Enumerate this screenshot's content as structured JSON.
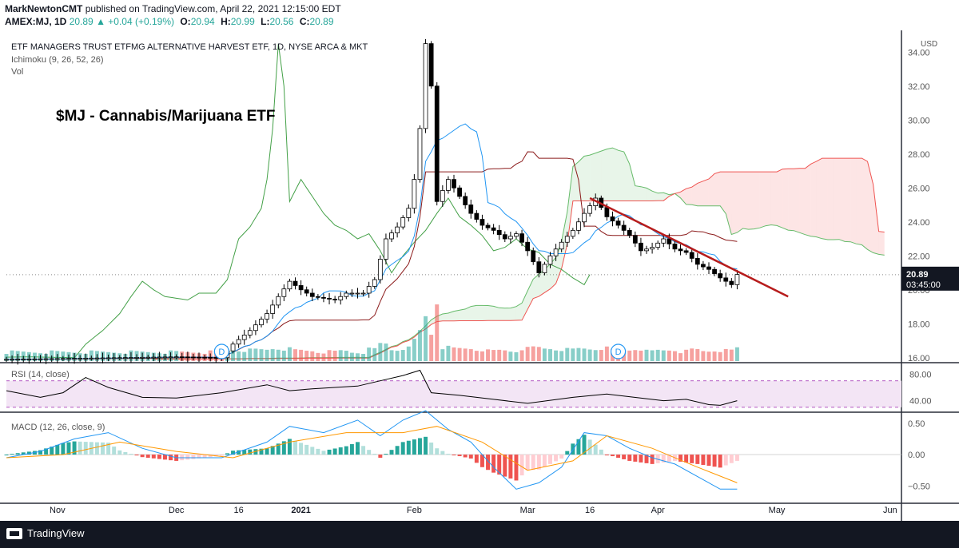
{
  "header": {
    "author": "MarkNewtonCMT",
    "published": "published on TradingView.com, April 22, 2021 12:15:00 EDT",
    "symbol": "AMEX:MJ, 1D",
    "last": "20.89",
    "change": "▲ +0.04 (+0.19%)",
    "o_label": "O:",
    "o": "20.94",
    "h_label": "H:",
    "h": "20.99",
    "l_label": "L:",
    "l": "20.56",
    "c_label": "C:",
    "c": "20.89"
  },
  "footer": {
    "brand": "TradingView"
  },
  "colors": {
    "bull": "#26a69a",
    "bear": "#ef5350",
    "tenkan": "#2196f3",
    "kijun": "#8b1a1a",
    "chikou": "#43a047",
    "span_a": "#66bb6a",
    "span_b": "#ef5350",
    "trend": "#b71c1c",
    "rsi": "#000000",
    "rsi_band": "#f3e5f5",
    "macd": "#2196f3",
    "signal": "#ff9800"
  },
  "chart_data": {
    "type": "candlestick",
    "title": "ETF MANAGERS TRUST ETFMG ALTERNATIVE HARVEST ETF, 1D, NYSE ARCA & MKT",
    "annotation": "$MJ - Cannabis/Marijuana ETF",
    "indicators_main": [
      "Ichimoku (9, 26, 52, 26)",
      "Vol"
    ],
    "currency": "USD",
    "last_price": "20.89",
    "countdown": "03:45:00",
    "dividend_marker": "D",
    "y_range": [
      15.8,
      35.0
    ],
    "y_ticks": [
      "34.00",
      "32.00",
      "30.00",
      "28.00",
      "26.00",
      "24.00",
      "22.00",
      "20.00",
      "18.00",
      "16.00"
    ],
    "x_labels": [
      "Nov",
      "Dec",
      "16",
      "2021",
      "Feb",
      "Mar",
      "16",
      "Apr",
      "May",
      "Jun"
    ],
    "price_path": [
      [
        0,
        15.9
      ],
      [
        10,
        15.95
      ],
      [
        20,
        16.0
      ],
      [
        30,
        16.05
      ],
      [
        38,
        16.0
      ],
      [
        40,
        16.8
      ],
      [
        43,
        17.6
      ],
      [
        46,
        18.6
      ],
      [
        48,
        19.6
      ],
      [
        50,
        20.5
      ],
      [
        52,
        20.0
      ],
      [
        54,
        19.6
      ],
      [
        58,
        19.4
      ],
      [
        60,
        19.8
      ],
      [
        63,
        19.8
      ],
      [
        65,
        20.6
      ],
      [
        67,
        23.0
      ],
      [
        69,
        23.7
      ],
      [
        71,
        24.8
      ],
      [
        72,
        26.5
      ],
      [
        73,
        29.5
      ],
      [
        74,
        34.5
      ],
      [
        75,
        32.0
      ],
      [
        76,
        25.2
      ],
      [
        78,
        26.5
      ],
      [
        80,
        25.5
      ],
      [
        82,
        24.5
      ],
      [
        84,
        23.8
      ],
      [
        86,
        23.5
      ],
      [
        88,
        23.0
      ],
      [
        90,
        23.3
      ],
      [
        92,
        22.3
      ],
      [
        94,
        21.0
      ],
      [
        96,
        22.0
      ],
      [
        98,
        22.8
      ],
      [
        100,
        23.5
      ],
      [
        102,
        24.5
      ],
      [
        104,
        25.4
      ],
      [
        106,
        24.3
      ],
      [
        108,
        23.8
      ],
      [
        110,
        23.2
      ],
      [
        112,
        22.3
      ],
      [
        114,
        22.5
      ],
      [
        116,
        23.0
      ],
      [
        118,
        22.4
      ],
      [
        120,
        22.2
      ],
      [
        122,
        21.5
      ],
      [
        124,
        21.2
      ],
      [
        126,
        20.7
      ],
      [
        128,
        20.3
      ],
      [
        129,
        20.9
      ]
    ],
    "rsi": {
      "label": "RSI (14, close)",
      "ticks": [
        "80.00",
        "40.00"
      ],
      "range": [
        25,
        95
      ],
      "band": [
        30,
        70
      ],
      "path": [
        [
          0,
          55
        ],
        [
          6,
          45
        ],
        [
          10,
          52
        ],
        [
          14,
          75
        ],
        [
          18,
          60
        ],
        [
          24,
          45
        ],
        [
          30,
          44
        ],
        [
          38,
          52
        ],
        [
          46,
          64
        ],
        [
          50,
          55
        ],
        [
          54,
          58
        ],
        [
          62,
          62
        ],
        [
          66,
          70
        ],
        [
          70,
          78
        ],
        [
          73,
          86
        ],
        [
          75,
          52
        ],
        [
          80,
          48
        ],
        [
          86,
          42
        ],
        [
          92,
          36
        ],
        [
          100,
          45
        ],
        [
          106,
          50
        ],
        [
          110,
          46
        ],
        [
          116,
          40
        ],
        [
          120,
          42
        ],
        [
          124,
          34
        ],
        [
          126,
          33
        ],
        [
          129,
          40
        ]
      ]
    },
    "macd": {
      "label": "MACD (12, 26, close, 9)",
      "ticks": [
        "0.50",
        "0.00",
        "−0.50"
      ],
      "range": [
        -0.75,
        0.65
      ],
      "macd": [
        [
          0,
          -0.05
        ],
        [
          6,
          0.05
        ],
        [
          12,
          0.25
        ],
        [
          18,
          0.35
        ],
        [
          24,
          0.1
        ],
        [
          30,
          -0.05
        ],
        [
          38,
          -0.05
        ],
        [
          46,
          0.2
        ],
        [
          50,
          0.45
        ],
        [
          56,
          0.35
        ],
        [
          62,
          0.55
        ],
        [
          66,
          0.3
        ],
        [
          70,
          0.55
        ],
        [
          74,
          0.7
        ],
        [
          78,
          0.4
        ],
        [
          82,
          0.2
        ],
        [
          86,
          -0.2
        ],
        [
          90,
          -0.55
        ],
        [
          94,
          -0.45
        ],
        [
          98,
          -0.2
        ],
        [
          102,
          0.35
        ],
        [
          106,
          0.3
        ],
        [
          110,
          0.1
        ],
        [
          114,
          -0.05
        ],
        [
          118,
          -0.15
        ],
        [
          122,
          -0.35
        ],
        [
          126,
          -0.55
        ],
        [
          129,
          -0.55
        ]
      ],
      "signal": [
        [
          0,
          -0.05
        ],
        [
          10,
          0.0
        ],
        [
          20,
          0.2
        ],
        [
          30,
          0.05
        ],
        [
          40,
          -0.05
        ],
        [
          50,
          0.2
        ],
        [
          60,
          0.35
        ],
        [
          70,
          0.35
        ],
        [
          76,
          0.45
        ],
        [
          84,
          0.2
        ],
        [
          92,
          -0.25
        ],
        [
          100,
          -0.1
        ],
        [
          106,
          0.3
        ],
        [
          114,
          0.1
        ],
        [
          122,
          -0.2
        ],
        [
          129,
          -0.45
        ]
      ]
    }
  }
}
